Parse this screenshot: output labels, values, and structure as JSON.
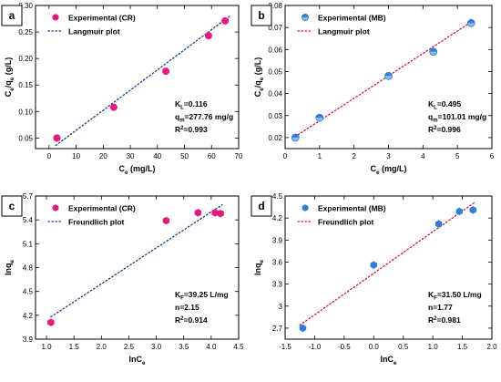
{
  "chart_data": [
    {
      "panel": "a",
      "type": "scatter",
      "xlabel": "C_e (mg/L)",
      "ylabel": "C_e/q_e (g/L)",
      "xlim": [
        -5,
        70
      ],
      "ylim": [
        0.03,
        0.3
      ],
      "xticks": [
        0,
        10,
        20,
        30,
        40,
        50,
        60,
        70
      ],
      "yticks": [
        0.05,
        0.1,
        0.15,
        0.2,
        0.25,
        0.3
      ],
      "ytick_labels": [
        "0.05",
        "0.10",
        "0.15",
        "0.20",
        "0.25",
        "0.30"
      ],
      "series": [
        {
          "name": "Experimental (CR)",
          "kind": "points",
          "marker": "circle",
          "color": "#e8197d",
          "x": [
            2.9,
            23.9,
            43.1,
            58.9,
            65.0
          ],
          "y": [
            0.05,
            0.108,
            0.176,
            0.243,
            0.271
          ]
        },
        {
          "name": "Langmuir plot",
          "kind": "fit",
          "style": "dotted",
          "color": "#1f3a8a",
          "x": [
            2.5,
            67.0
          ],
          "y": [
            0.036,
            0.281
          ]
        }
      ],
      "annotations": [
        {
          "main": "K",
          "sub": "L",
          "rest": "=0.116"
        },
        {
          "main": "q",
          "sub": "m",
          "rest": "=277.76 mg/g"
        },
        {
          "main": "R",
          "sup": "2",
          "rest": "=0.993"
        }
      ],
      "legend_position": "top-left"
    },
    {
      "panel": "b",
      "type": "scatter",
      "xlabel": "C_e (mg/L)",
      "ylabel": "C_e/q_e (g/L)",
      "xlim": [
        0,
        6
      ],
      "ylim": [
        0.015,
        0.08
      ],
      "xticks": [
        0,
        1,
        2,
        3,
        4,
        5,
        6
      ],
      "yticks": [
        0.02,
        0.03,
        0.04,
        0.05,
        0.06,
        0.07,
        0.08
      ],
      "ytick_labels": [
        "0.02",
        "0.03",
        "0.04",
        "0.05",
        "0.06",
        "0.07",
        "0.08"
      ],
      "series": [
        {
          "name": "Experimental (MB)",
          "kind": "points",
          "marker": "half-circle",
          "color": "#2e7fd6",
          "x": [
            0.3,
            1.0,
            3.0,
            4.3,
            5.4
          ],
          "y": [
            0.02,
            0.029,
            0.048,
            0.059,
            0.072
          ]
        },
        {
          "name": "Langmuir plot",
          "kind": "fit",
          "style": "dotted",
          "color": "#e0113b",
          "x": [
            0.2,
            5.5
          ],
          "y": [
            0.0195,
            0.0735
          ]
        }
      ],
      "annotations": [
        {
          "main": "K",
          "sub": "L",
          "rest": "=0.495"
        },
        {
          "main": "q",
          "sub": "m",
          "rest": "=101.01 mg/g"
        },
        {
          "main": "R",
          "sup": "2",
          "rest": "=0.996"
        }
      ],
      "legend_position": "top-left"
    },
    {
      "panel": "c",
      "type": "scatter",
      "xlabel": "lnC_e",
      "ylabel": "lnq_e",
      "xlim": [
        0.8,
        4.5
      ],
      "ylim": [
        3.9,
        5.7
      ],
      "xticks": [
        1.0,
        1.5,
        2.0,
        2.5,
        3.0,
        3.5,
        4.0,
        4.5
      ],
      "xtick_labels": [
        "1.0",
        "1.5",
        "2.0",
        "2.5",
        "3.0",
        "3.5",
        "4.0",
        "4.5"
      ],
      "yticks": [
        3.9,
        4.2,
        4.5,
        4.8,
        5.1,
        5.4,
        5.7
      ],
      "series": [
        {
          "name": "Experimental (CR)",
          "kind": "points",
          "marker": "hexagon",
          "color": "#e8197d",
          "x": [
            1.08,
            3.18,
            3.76,
            4.07,
            4.17
          ],
          "y": [
            4.11,
            5.39,
            5.49,
            5.49,
            5.48
          ]
        },
        {
          "name": "Freundlich plot",
          "kind": "fit",
          "style": "dotted",
          "color": "#1f3a8a",
          "x": [
            1.08,
            4.2
          ],
          "y": [
            4.18,
            5.59
          ]
        }
      ],
      "annotations": [
        {
          "main": "K",
          "sub": "F",
          "rest": "=39.25 L/mg"
        },
        {
          "main": "n=2.15"
        },
        {
          "main": "R",
          "sup": "2",
          "rest": "=0.914"
        }
      ],
      "legend_position": "top-left"
    },
    {
      "panel": "d",
      "type": "scatter",
      "xlabel": "lnC_e",
      "ylabel": "lnq_e",
      "xlim": [
        -1.5,
        2.0
      ],
      "ylim": [
        2.55,
        4.5
      ],
      "xticks": [
        -1.5,
        -1.0,
        -0.5,
        0.0,
        0.5,
        1.0,
        1.5,
        2.0
      ],
      "xtick_labels": [
        "-1.5",
        "-1.0",
        "-0.5",
        "0.0",
        "0.5",
        "1.0",
        "1.5",
        "2.0"
      ],
      "yticks": [
        2.7,
        3.0,
        3.3,
        3.6,
        3.9,
        4.2,
        4.5
      ],
      "series": [
        {
          "name": "Experimental (MB)",
          "kind": "points",
          "marker": "hexagon",
          "color": "#2e7fd6",
          "x": [
            -1.2,
            0.0,
            1.1,
            1.45,
            1.68
          ],
          "y": [
            2.7,
            3.56,
            4.12,
            4.29,
            4.31
          ]
        },
        {
          "name": "Freundlich plot",
          "kind": "fit",
          "style": "dotted",
          "color": "#e0113b",
          "x": [
            -1.25,
            1.72
          ],
          "y": [
            2.74,
            4.42
          ]
        }
      ],
      "annotations": [
        {
          "main": "K",
          "sub": "F",
          "rest": "=31.50 L/mg"
        },
        {
          "main": "n=1.77"
        },
        {
          "main": "R",
          "sup": "2",
          "rest": "=0.981"
        }
      ],
      "legend_position": "top-left"
    }
  ]
}
